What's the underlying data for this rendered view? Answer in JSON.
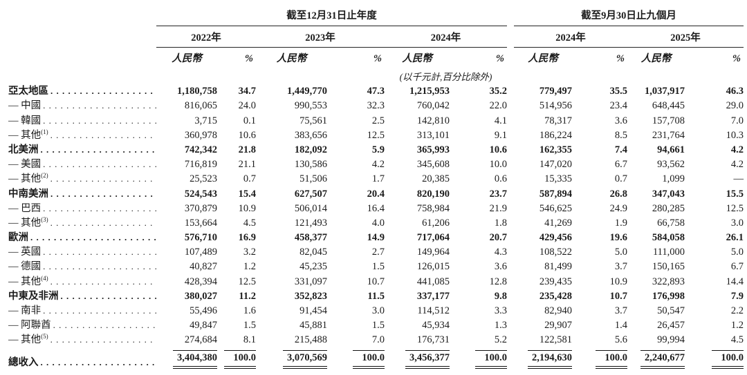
{
  "header": {
    "period_annual": "截至12月31日止年度",
    "period_nine_months": "截至9月30日止九個月",
    "years": [
      "2022年",
      "2023年",
      "2024年",
      "2024年",
      "2025年"
    ],
    "currency_label": "人民幣",
    "percent_label": "%",
    "unit_note": "(以千元計,百分比除外)"
  },
  "rows": [
    {
      "label": "亞太地區",
      "sup": "",
      "bold": true,
      "total": false,
      "cells": [
        "1,180,758",
        "34.7",
        "1,449,770",
        "47.3",
        "1,215,953",
        "35.2",
        "779,497",
        "35.5",
        "1,037,917",
        "46.3"
      ]
    },
    {
      "label": "— 中國",
      "sup": "",
      "bold": false,
      "total": false,
      "cells": [
        "816,065",
        "24.0",
        "990,553",
        "32.3",
        "760,042",
        "22.0",
        "514,956",
        "23.4",
        "648,445",
        "29.0"
      ]
    },
    {
      "label": "— 韓國",
      "sup": "",
      "bold": false,
      "total": false,
      "cells": [
        "3,715",
        "0.1",
        "75,561",
        "2.5",
        "142,810",
        "4.1",
        "78,317",
        "3.6",
        "157,708",
        "7.0"
      ]
    },
    {
      "label": "— 其他",
      "sup": "(1)",
      "bold": false,
      "total": false,
      "cells": [
        "360,978",
        "10.6",
        "383,656",
        "12.5",
        "313,101",
        "9.1",
        "186,224",
        "8.5",
        "231,764",
        "10.3"
      ]
    },
    {
      "label": "北美洲",
      "sup": "",
      "bold": true,
      "total": false,
      "cells": [
        "742,342",
        "21.8",
        "182,092",
        "5.9",
        "365,993",
        "10.6",
        "162,355",
        "7.4",
        "94,661",
        "4.2"
      ]
    },
    {
      "label": "— 美國",
      "sup": "",
      "bold": false,
      "total": false,
      "cells": [
        "716,819",
        "21.1",
        "130,586",
        "4.2",
        "345,608",
        "10.0",
        "147,020",
        "6.7",
        "93,562",
        "4.2"
      ]
    },
    {
      "label": "— 其他",
      "sup": "(2)",
      "bold": false,
      "total": false,
      "cells": [
        "25,523",
        "0.7",
        "51,506",
        "1.7",
        "20,385",
        "0.6",
        "15,335",
        "0.7",
        "1,099",
        "—"
      ]
    },
    {
      "label": "中南美洲",
      "sup": "",
      "bold": true,
      "total": false,
      "cells": [
        "524,543",
        "15.4",
        "627,507",
        "20.4",
        "820,190",
        "23.7",
        "587,894",
        "26.8",
        "347,043",
        "15.5"
      ]
    },
    {
      "label": "— 巴西",
      "sup": "",
      "bold": false,
      "total": false,
      "cells": [
        "370,879",
        "10.9",
        "506,014",
        "16.4",
        "758,984",
        "21.9",
        "546,625",
        "24.9",
        "280,285",
        "12.5"
      ]
    },
    {
      "label": "— 其他",
      "sup": "(3)",
      "bold": false,
      "total": false,
      "cells": [
        "153,664",
        "4.5",
        "121,493",
        "4.0",
        "61,206",
        "1.8",
        "41,269",
        "1.9",
        "66,758",
        "3.0"
      ]
    },
    {
      "label": "歐洲",
      "sup": "",
      "bold": true,
      "total": false,
      "cells": [
        "576,710",
        "16.9",
        "458,377",
        "14.9",
        "717,064",
        "20.7",
        "429,456",
        "19.6",
        "584,058",
        "26.1"
      ]
    },
    {
      "label": "— 英國",
      "sup": "",
      "bold": false,
      "total": false,
      "cells": [
        "107,489",
        "3.2",
        "82,045",
        "2.7",
        "149,964",
        "4.3",
        "108,522",
        "5.0",
        "111,000",
        "5.0"
      ]
    },
    {
      "label": "— 德國",
      "sup": "",
      "bold": false,
      "total": false,
      "cells": [
        "40,827",
        "1.2",
        "45,235",
        "1.5",
        "126,015",
        "3.6",
        "81,499",
        "3.7",
        "150,165",
        "6.7"
      ]
    },
    {
      "label": "— 其他",
      "sup": "(4)",
      "bold": false,
      "total": false,
      "cells": [
        "428,394",
        "12.5",
        "331,097",
        "10.7",
        "441,085",
        "12.8",
        "239,435",
        "10.9",
        "322,893",
        "14.4"
      ]
    },
    {
      "label": "中東及非洲",
      "sup": "",
      "bold": true,
      "total": false,
      "cells": [
        "380,027",
        "11.2",
        "352,823",
        "11.5",
        "337,177",
        "9.8",
        "235,428",
        "10.7",
        "176,998",
        "7.9"
      ]
    },
    {
      "label": "— 南非",
      "sup": "",
      "bold": false,
      "total": false,
      "cells": [
        "55,496",
        "1.6",
        "91,454",
        "3.0",
        "114,512",
        "3.3",
        "82,940",
        "3.7",
        "50,547",
        "2.2"
      ]
    },
    {
      "label": "— 阿聯酋",
      "sup": "",
      "bold": false,
      "total": false,
      "cells": [
        "49,847",
        "1.5",
        "45,881",
        "1.5",
        "45,934",
        "1.3",
        "29,907",
        "1.4",
        "26,457",
        "1.2"
      ]
    },
    {
      "label": "— 其他",
      "sup": "(5)",
      "bold": false,
      "total": false,
      "cells": [
        "274,684",
        "8.1",
        "215,488",
        "7.0",
        "176,731",
        "5.2",
        "122,581",
        "5.6",
        "99,994",
        "4.5"
      ]
    },
    {
      "label": "總收入",
      "sup": "",
      "bold": true,
      "total": true,
      "cells": [
        "3,404,380",
        "100.0",
        "3,070,569",
        "100.0",
        "3,456,377",
        "100.0",
        "2,194,630",
        "100.0",
        "2,240,677",
        "100.0"
      ]
    }
  ]
}
